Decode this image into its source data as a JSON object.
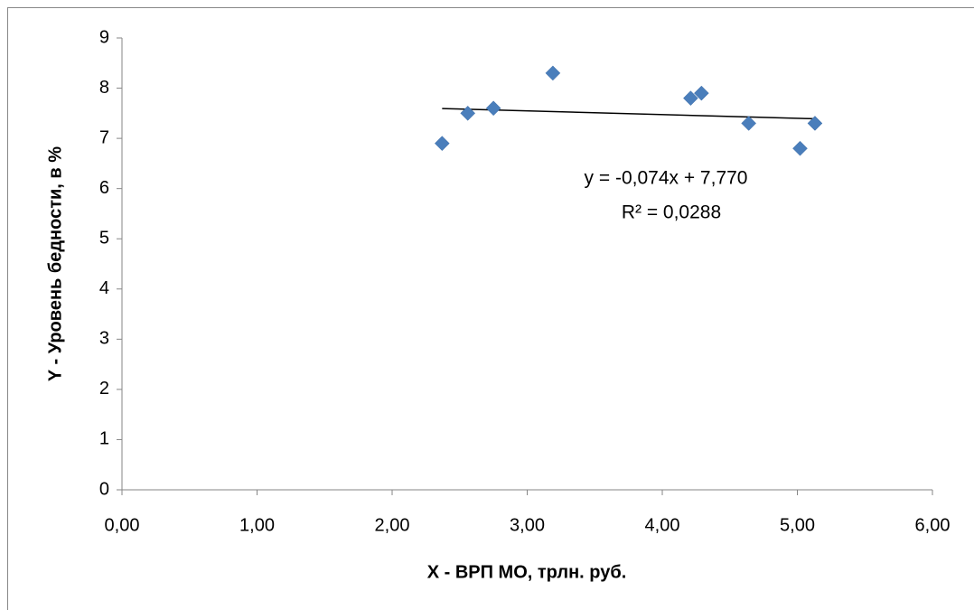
{
  "chart_data": {
    "type": "scatter",
    "x_label": "X - ВРП МО, трлн. руб.",
    "y_label": "Y - Уровень бедности, в %",
    "x": [
      2.37,
      2.56,
      2.75,
      3.19,
      4.21,
      4.29,
      4.64,
      5.02,
      5.13
    ],
    "series": [
      {
        "color": "#4a7ebb",
        "values": [
          6.9,
          7.5,
          7.6,
          8.3,
          7.8,
          7.9,
          7.3,
          6.8,
          7.3
        ]
      }
    ],
    "trendline": {
      "equation": "y = -0,074x + 7,770",
      "r_squared": "R² = 0,0288",
      "slope": -0.074,
      "intercept": 7.77
    },
    "xlim": [
      0,
      6
    ],
    "xticks": [
      {
        "value": 0,
        "label": "0,00"
      },
      {
        "value": 1,
        "label": "1,00"
      },
      {
        "value": 2,
        "label": "2,00"
      },
      {
        "value": 3,
        "label": "3,00"
      },
      {
        "value": 4,
        "label": "4,00"
      },
      {
        "value": 5,
        "label": "5,00"
      },
      {
        "value": 6,
        "label": "6,00"
      }
    ],
    "ylim": [
      0,
      9
    ],
    "yticks": [
      0,
      1,
      2,
      3,
      4,
      5,
      6,
      7,
      8,
      9
    ],
    "grid": false
  }
}
